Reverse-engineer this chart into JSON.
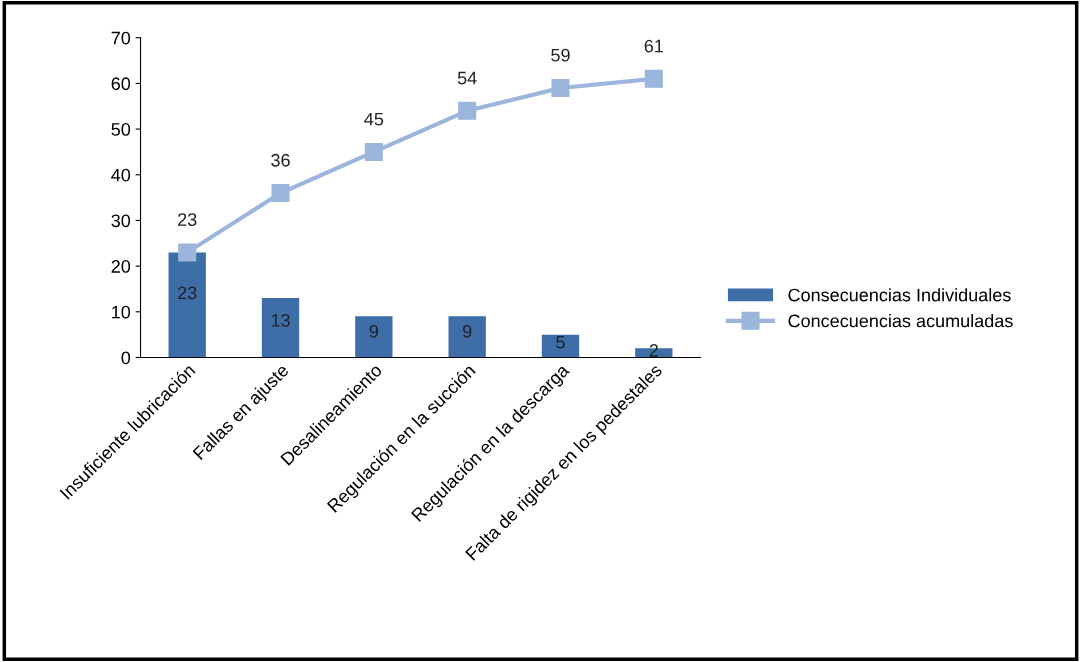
{
  "chart_data": {
    "type": "bar",
    "categories": [
      "Insuficiente lubricación",
      "Fallas en ajuste",
      "Desalineamiento",
      "Regulación en la succión",
      "Regulación en la descarga",
      "Falta de rigidez en los pedestales"
    ],
    "series": [
      {
        "name": "Consecuencias Individuales",
        "color": "#3d6ea8",
        "values": [
          23,
          13,
          9,
          9,
          5,
          2
        ]
      },
      {
        "name": "Concecuencias acumuladas",
        "type": "line",
        "color": "#9bb5dc",
        "values": [
          23,
          36,
          45,
          54,
          59,
          61
        ]
      }
    ],
    "ylim": [
      0,
      70
    ],
    "yticks": [
      0,
      10,
      20,
      30,
      40,
      50,
      60,
      70
    ],
    "grid": false,
    "legend": "right",
    "marker": "square",
    "data_labels": true
  }
}
